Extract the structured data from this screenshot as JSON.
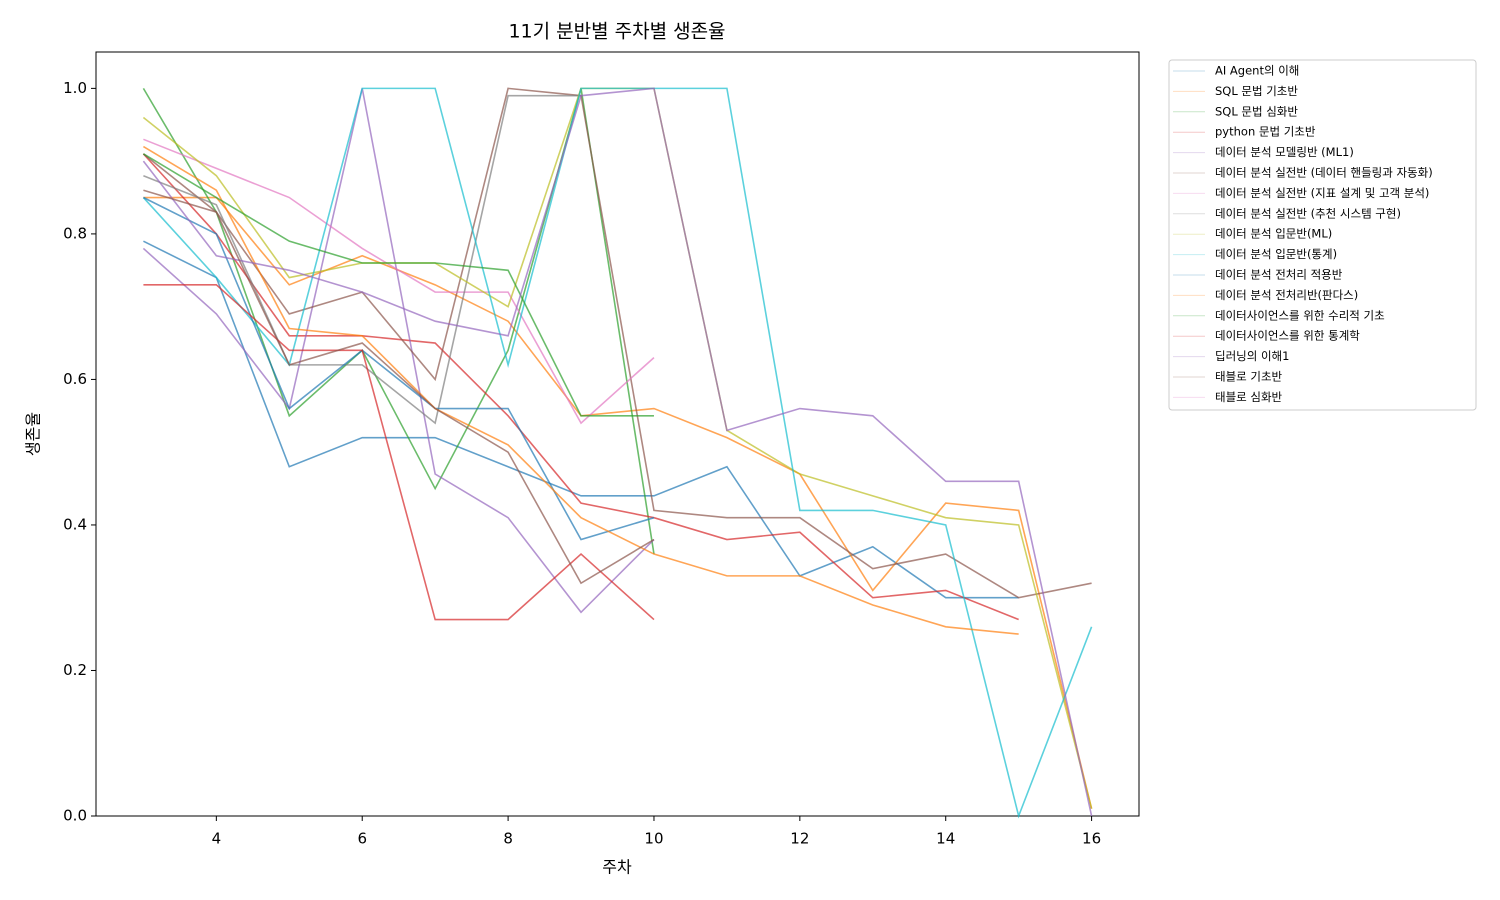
{
  "chart_data": {
    "type": "line",
    "title": "11기 분반별 주차별 생존율",
    "x_label": "주차",
    "y_label": "생존율",
    "x": [
      3,
      4,
      5,
      6,
      7,
      8,
      9,
      10,
      11,
      12,
      13,
      14,
      15,
      16
    ],
    "xlim": [
      2.35,
      16.65
    ],
    "ylim": [
      0,
      1.05
    ],
    "xticks": [
      4,
      6,
      8,
      10,
      12,
      14,
      16
    ],
    "yticks": [
      {
        "value": 0,
        "label": "0.0"
      },
      0.2,
      0.4,
      0.6,
      0.8,
      {
        "value": 1,
        "label": "1.0"
      }
    ],
    "legend": "outside-upper-right",
    "series": [
      {
        "name": "AI Agent의 이해",
        "color": "#1f77b4",
        "values": [
          0.79,
          0.74,
          0.48,
          0.52,
          0.52,
          0.48,
          0.44,
          0.44,
          0.48,
          0.33,
          0.37,
          0.3,
          0.3,
          null
        ]
      },
      {
        "name": "SQL 문법 기초반",
        "color": "#ff7f0e",
        "values": [
          0.85,
          0.85,
          0.73,
          0.77,
          0.73,
          0.68,
          0.55,
          0.56,
          0.52,
          0.47,
          0.31,
          0.43,
          0.42,
          0.01
        ]
      },
      {
        "name": "SQL 문법 심화반",
        "color": "#2ca02c",
        "values": [
          1.0,
          0.83,
          0.55,
          0.64,
          0.45,
          0.64,
          1.0,
          0.36,
          null,
          null,
          null,
          null,
          null,
          null
        ]
      },
      {
        "name": "python 문법 기초반",
        "color": "#d62728",
        "values": [
          0.91,
          0.8,
          0.66,
          0.66,
          0.65,
          0.55,
          0.43,
          0.41,
          0.38,
          0.39,
          0.3,
          0.31,
          0.27,
          null
        ]
      },
      {
        "name": "데이터 분석 모델링반 (ML1)",
        "color": "#9467bd",
        "values": [
          0.78,
          0.69,
          0.56,
          1.0,
          0.47,
          0.41,
          0.28,
          0.38,
          null,
          null,
          null,
          null,
          null,
          null
        ]
      },
      {
        "name": "데이터 분석 실전반 (데이터 핸들링과 자동화)",
        "color": "#8c564b",
        "values": [
          0.91,
          0.83,
          0.69,
          0.72,
          0.6,
          1.0,
          0.99,
          0.42,
          0.41,
          0.41,
          0.34,
          0.36,
          0.3,
          0.32
        ]
      },
      {
        "name": "데이터 분석 실전반 (지표 설계 및 고객 분석)",
        "color": "#e377c2",
        "values": [
          0.93,
          0.89,
          0.85,
          0.78,
          0.72,
          0.72,
          0.54,
          0.63,
          null,
          null,
          null,
          null,
          null,
          null
        ]
      },
      {
        "name": "데이터 분석 실전반 (추천 시스템 구현)",
        "color": "#7f7f7f",
        "values": [
          0.88,
          0.84,
          0.62,
          0.62,
          0.54,
          0.99,
          0.99,
          null,
          null,
          null,
          null,
          null,
          null,
          null
        ]
      },
      {
        "name": "데이터 분석 입문반(ML)",
        "color": "#bcbd22",
        "values": [
          0.96,
          0.88,
          0.74,
          0.76,
          0.76,
          0.7,
          1.0,
          1.0,
          0.53,
          0.47,
          0.44,
          0.41,
          0.4,
          0.01
        ]
      },
      {
        "name": "데이터 분석 입문반(통계)",
        "color": "#17becf",
        "values": [
          0.85,
          0.74,
          0.62,
          1.0,
          1.0,
          0.62,
          1.0,
          1.0,
          1.0,
          0.42,
          0.42,
          0.4,
          0.0,
          0.26
        ]
      },
      {
        "name": "데이터 분석 전처리 적용반",
        "color": "#1f77b4",
        "values": [
          0.85,
          0.8,
          0.56,
          0.64,
          0.56,
          0.56,
          0.38,
          0.41,
          null,
          null,
          null,
          null,
          null,
          null
        ]
      },
      {
        "name": "데이터 분석 전처리반(판다스)",
        "color": "#ff7f0e",
        "values": [
          0.92,
          0.86,
          0.67,
          0.66,
          0.56,
          0.51,
          0.41,
          0.36,
          0.33,
          0.33,
          0.29,
          0.26,
          0.25,
          null
        ]
      },
      {
        "name": "데이터사이언스를 위한 수리적 기초",
        "color": "#2ca02c",
        "values": [
          0.91,
          0.85,
          0.79,
          0.76,
          0.76,
          0.75,
          0.55,
          0.55,
          null,
          null,
          null,
          null,
          null,
          null
        ]
      },
      {
        "name": "데이터사이언스를 위한 통계학",
        "color": "#d62728",
        "values": [
          0.73,
          0.73,
          0.64,
          0.64,
          0.27,
          0.27,
          0.36,
          0.27,
          null,
          null,
          null,
          null,
          null,
          null
        ]
      },
      {
        "name": "딥러닝의 이해1",
        "color": "#9467bd",
        "values": [
          0.9,
          0.77,
          0.75,
          0.72,
          0.68,
          0.66,
          0.99,
          1.0,
          0.53,
          0.56,
          0.55,
          0.46,
          0.46,
          0.0
        ]
      },
      {
        "name": "태블로 기초반",
        "color": "#8c564b",
        "values": [
          0.86,
          0.83,
          0.62,
          0.65,
          0.56,
          0.5,
          0.32,
          0.38,
          null,
          null,
          null,
          null,
          null,
          null
        ]
      },
      {
        "name": "태블로 심화반",
        "color": "#e377c2",
        "values": [
          null,
          null,
          null,
          null,
          null,
          null,
          null,
          null,
          null,
          null,
          null,
          null,
          null,
          null
        ]
      }
    ]
  }
}
